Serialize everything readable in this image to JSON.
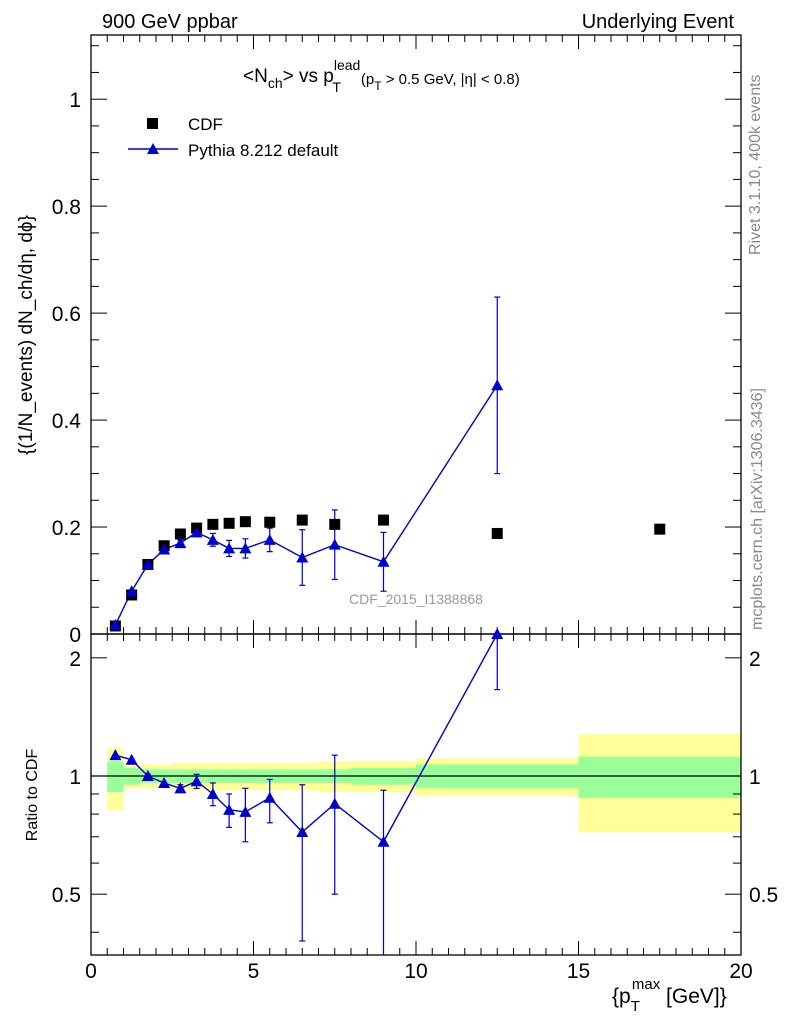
{
  "header": {
    "left": "900 GeV ppbar",
    "right": "Underlying Event"
  },
  "side": {
    "rivet": "Rivet 3.1.10,  400k events",
    "mcplots": "mcplots.cern.ch [arXiv:1306.3436]"
  },
  "watermark": "CDF_2015_I1388868",
  "colors": {
    "data": "#000000",
    "mc": "#0000cc",
    "band_inner": "#99ff99",
    "band_outer": "#ffff99"
  },
  "chart_data": [
    {
      "type": "scatter",
      "title_parts": {
        "main": "<N",
        "sub_ch": "ch",
        "vs": "> vs p",
        "sup_lead": "lead",
        "sub_T": "T",
        "cut1": "(p",
        "cut1_sub": "T",
        "cut2": " > 0.5 GeV, |η| < 0.8)"
      },
      "ylabel": "{(1/N_events) dN_ch/dη, dϕ}",
      "xlim": [
        0,
        20
      ],
      "ylim": [
        0,
        1.12
      ],
      "yticks": [
        0,
        0.2,
        0.4,
        0.6,
        0.8,
        1
      ],
      "ytick_labels": [
        "0",
        "0.2",
        "0.4",
        "0.6",
        "0.8",
        "1"
      ],
      "legend": {
        "placement": "top-left",
        "entries": [
          "CDF",
          "Pythia 8.212 default"
        ]
      },
      "series": [
        {
          "name": "CDF",
          "marker": "square",
          "x": [
            0.75,
            1.25,
            1.75,
            2.25,
            2.75,
            3.25,
            3.75,
            4.25,
            4.75,
            5.5,
            6.5,
            7.5,
            9.0,
            12.5,
            17.5
          ],
          "y": [
            0.015,
            0.073,
            0.13,
            0.165,
            0.187,
            0.198,
            0.205,
            0.207,
            0.21,
            0.209,
            0.213,
            0.205,
            0.213,
            0.188,
            0.196
          ]
        },
        {
          "name": "Pythia 8.212 default",
          "marker": "triangle",
          "x": [
            0.75,
            1.25,
            1.75,
            2.25,
            2.75,
            3.25,
            3.75,
            4.25,
            4.75,
            5.5,
            6.5,
            7.5,
            9.0,
            12.5
          ],
          "y": [
            0.017,
            0.08,
            0.13,
            0.158,
            0.17,
            0.19,
            0.176,
            0.16,
            0.16,
            0.176,
            0.143,
            0.167,
            0.135,
            0.465
          ],
          "yerr": [
            0.001,
            0.002,
            0.003,
            0.004,
            0.006,
            0.008,
            0.012,
            0.015,
            0.018,
            0.022,
            0.052,
            0.065,
            0.055,
            0.165
          ]
        }
      ]
    },
    {
      "type": "scatter",
      "ylabel": "Ratio to CDF",
      "xlabel": "{p_T^max [GeV]}",
      "xlabel_parts": {
        "open": "{p",
        "sub": "T",
        "sup": "max",
        "close": " [GeV]}"
      },
      "xlim": [
        0,
        20
      ],
      "ylim": [
        0.35,
        2.3
      ],
      "yticks": [
        0.5,
        1,
        2
      ],
      "ytick_labels": [
        "0.5",
        "1",
        "2"
      ],
      "xticks": [
        0,
        5,
        10,
        15,
        20
      ],
      "xtick_labels": [
        "0",
        "5",
        "10",
        "15",
        "20"
      ],
      "bands": {
        "edges": [
          0.5,
          1.0,
          1.5,
          2.0,
          2.5,
          3.0,
          3.5,
          4.0,
          4.5,
          5.0,
          6.0,
          7.0,
          8.0,
          10.0,
          15.0,
          20.0
        ],
        "inner_lo": [
          0.91,
          0.95,
          0.96,
          0.96,
          0.96,
          0.96,
          0.96,
          0.96,
          0.96,
          0.96,
          0.96,
          0.96,
          0.95,
          0.93,
          0.88
        ],
        "inner_hi": [
          1.09,
          1.05,
          1.04,
          1.04,
          1.04,
          1.04,
          1.04,
          1.04,
          1.04,
          1.04,
          1.04,
          1.04,
          1.05,
          1.07,
          1.12
        ],
        "outer_lo": [
          0.82,
          0.93,
          0.93,
          0.93,
          0.92,
          0.92,
          0.92,
          0.92,
          0.92,
          0.92,
          0.92,
          0.91,
          0.91,
          0.89,
          0.72
        ],
        "outer_hi": [
          1.18,
          1.07,
          1.07,
          1.07,
          1.08,
          1.08,
          1.08,
          1.08,
          1.08,
          1.08,
          1.08,
          1.09,
          1.09,
          1.11,
          1.28
        ]
      },
      "series": [
        {
          "name": "Pythia 8.212 default",
          "marker": "triangle",
          "x": [
            0.75,
            1.25,
            1.75,
            2.25,
            2.75,
            3.25,
            3.75,
            4.25,
            4.75,
            5.5,
            6.5,
            7.5,
            9.0,
            12.5
          ],
          "y": [
            1.13,
            1.1,
            1.0,
            0.96,
            0.93,
            0.97,
            0.9,
            0.82,
            0.81,
            0.88,
            0.72,
            0.85,
            0.68,
            2.3
          ],
          "ylo": [
            1.13,
            1.1,
            0.99,
            0.96,
            0.91,
            0.93,
            0.84,
            0.74,
            0.68,
            0.76,
            0.38,
            0.5,
            0.33,
            1.66
          ],
          "yhi": [
            1.13,
            1.1,
            1.01,
            0.96,
            0.95,
            1.01,
            0.96,
            0.9,
            0.93,
            0.98,
            0.95,
            1.13,
            0.92,
            2.3
          ]
        }
      ]
    }
  ]
}
